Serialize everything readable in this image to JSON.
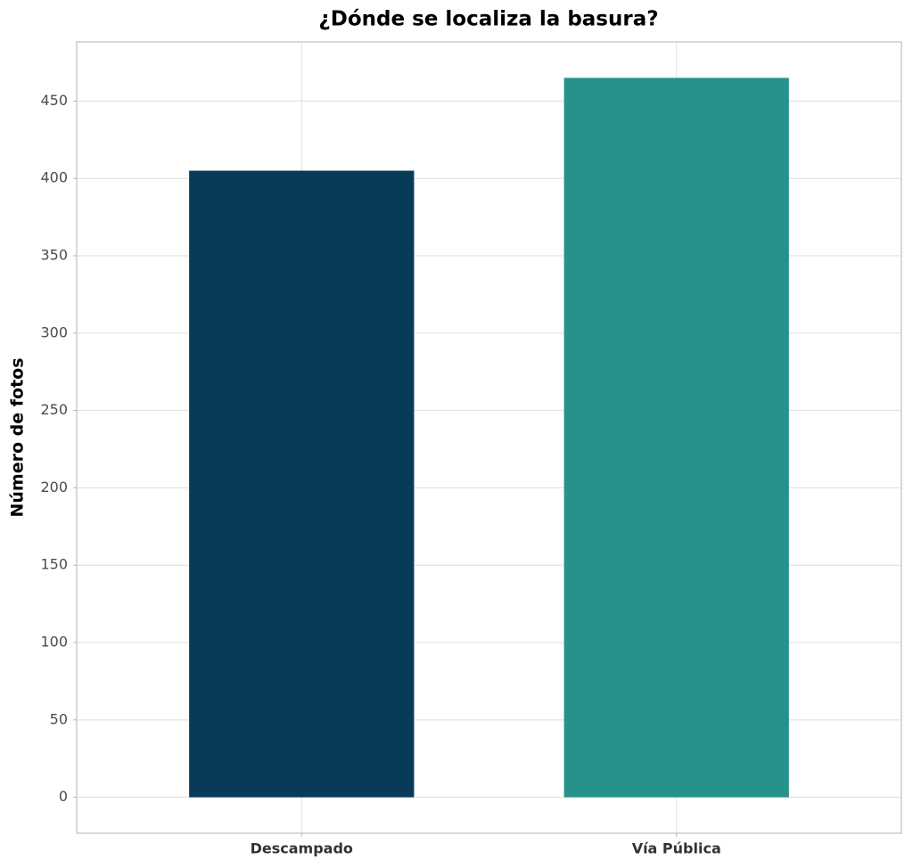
{
  "chart_data": {
    "type": "bar",
    "title": "¿Dónde se localiza la basura?",
    "y_label": "Número de fotos",
    "categories": [
      "Descampado",
      "Vía Pública"
    ],
    "values": [
      405,
      465
    ],
    "colors": [
      "#083a5a",
      "#26928b"
    ],
    "ylim": [
      -23.25,
      488.25
    ],
    "yticks": [
      0,
      50,
      100,
      150,
      200,
      250,
      300,
      350,
      400,
      450
    ],
    "grid": true
  }
}
